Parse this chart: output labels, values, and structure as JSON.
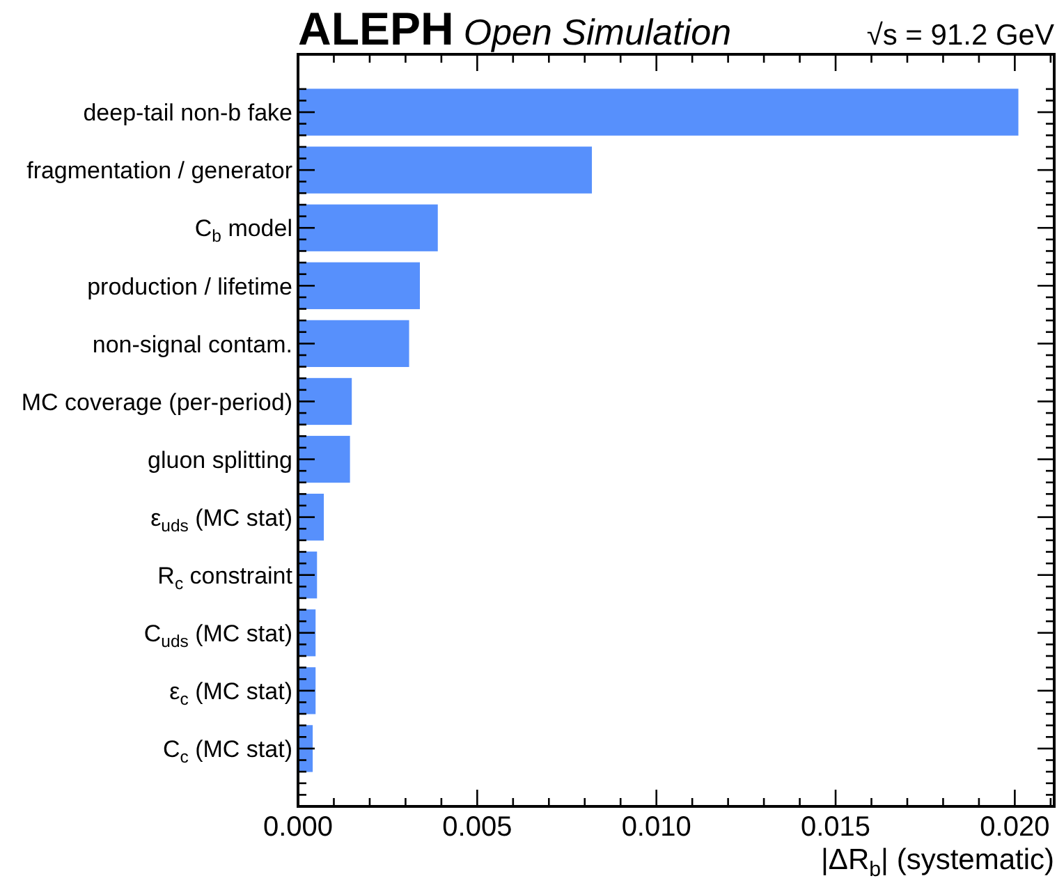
{
  "chart_data": {
    "type": "bar",
    "orientation": "horizontal",
    "title": "ALEPH",
    "subtitle": "Open Simulation",
    "annotations": [
      "√s = 91.2 GeV"
    ],
    "xlabel": "|ΔR$_{b}$| (systematic)",
    "categories": [
      "deep-tail non-b fake",
      "fragmentation / generator",
      "C$_{b}$ model",
      "production / lifetime",
      "non-signal contam.",
      "MC coverage (per-period)",
      "gluon splitting",
      "ε$_{uds}$ (MC stat)",
      "R$_{c}$ constraint",
      "C$_{uds}$ (MC stat)",
      "ε$_{c}$ (MC stat)",
      "C$_{c}$ (MC stat)"
    ],
    "values": [
      0.0201,
      0.0082,
      0.0039,
      0.0034,
      0.0031,
      0.0015,
      0.00145,
      0.00072,
      0.00053,
      0.00049,
      0.00049,
      0.00041
    ],
    "color": "#5790fc",
    "xlim": [
      0,
      0.0211
    ],
    "xticks": [
      {
        "value": 0,
        "label": "0.000"
      },
      {
        "value": 0.001,
        "label": null
      },
      {
        "value": 0.002,
        "label": null
      },
      {
        "value": 0.003,
        "label": null
      },
      {
        "value": 0.004,
        "label": null
      },
      {
        "value": 0.005,
        "label": "0.005"
      },
      {
        "value": 0.006,
        "label": null
      },
      {
        "value": 0.007,
        "label": null
      },
      {
        "value": 0.008,
        "label": null
      },
      {
        "value": 0.009,
        "label": null
      },
      {
        "value": 0.01,
        "label": "0.010"
      },
      {
        "value": 0.011,
        "label": null
      },
      {
        "value": 0.012,
        "label": null
      },
      {
        "value": 0.013,
        "label": null
      },
      {
        "value": 0.014,
        "label": null
      },
      {
        "value": 0.015,
        "label": "0.015"
      },
      {
        "value": 0.016,
        "label": null
      },
      {
        "value": 0.017,
        "label": null
      },
      {
        "value": 0.018,
        "label": null
      },
      {
        "value": 0.019,
        "label": null
      },
      {
        "value": 0.02,
        "label": "0.020"
      },
      {
        "value": 0.021,
        "label": null
      }
    ]
  }
}
